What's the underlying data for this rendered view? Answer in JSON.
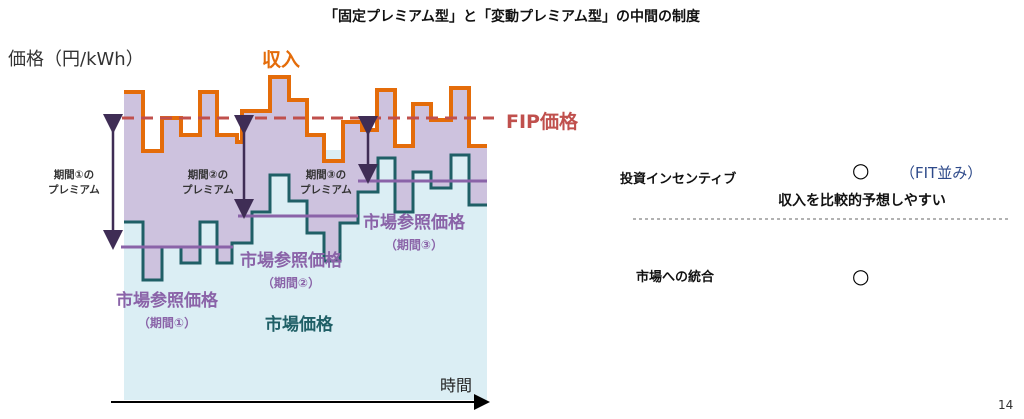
{
  "title": "「固定プレミアム型」と「変動プレミアム型」の中間の制度",
  "chart": {
    "y_axis_label": "価格（円/kWh）",
    "x_axis_label": "時間",
    "revenue_label": "収入",
    "fip_label": "FIP価格",
    "market_price_label": "市場価格",
    "premiums": [
      {
        "line1": "期間①の",
        "line2": "プレミアム"
      },
      {
        "line1": "期間②の",
        "line2": "プレミアム"
      },
      {
        "line1": "期間③の",
        "line2": "プレミアム"
      }
    ],
    "reference_prices": [
      {
        "label": "市場参照価格",
        "period": "（期間①）"
      },
      {
        "label": "市場参照価格",
        "period": "（期間②）"
      },
      {
        "label": "市場参照価格",
        "period": "（期間③）"
      }
    ],
    "colors": {
      "revenue": "#e46c0a",
      "fip": "#c0504d",
      "market": "#1f5f66",
      "reference": "#8a63a8",
      "premium_fill": "#cdc2de",
      "market_fill": "#dbeef4",
      "arrow": "#3f2d55"
    }
  },
  "evaluation": {
    "rows": [
      {
        "label": "投資インセンティブ",
        "mark": "○",
        "note": "（FIT並み）",
        "detail": "収入を比較的予想しやすい"
      },
      {
        "label": "市場への統合",
        "mark": "○"
      }
    ]
  },
  "page_number": "14"
}
